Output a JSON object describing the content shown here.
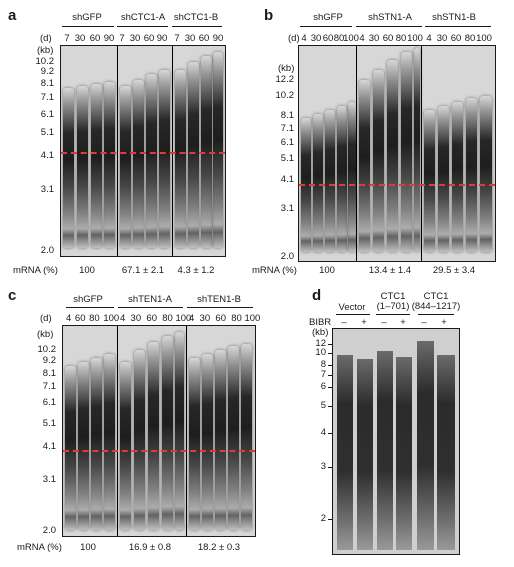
{
  "panels": {
    "a": {
      "letter": "a",
      "d_label": "(d)",
      "kb_label": "(kb)",
      "groups": [
        "shGFP",
        "shCTC1-A",
        "shCTC1-B"
      ],
      "lanes": [
        "7",
        "30",
        "60",
        "90",
        "7",
        "30",
        "60",
        "90",
        "7",
        "30",
        "60",
        "90"
      ],
      "markers": [
        "10.2",
        "9.2",
        "8.1",
        "7.1",
        "6.1",
        "5.1",
        "4.1",
        "3.1",
        "2.0"
      ],
      "mrna_label": "mRNA (%)",
      "mrna_values": [
        "100",
        "67.1 ± 2.1",
        "4.3 ± 1.2"
      ]
    },
    "b": {
      "letter": "b",
      "d_label": "(d)",
      "kb_label": "(kb)",
      "groups": [
        "shGFP",
        "shSTN1-A",
        "shSTN1-B"
      ],
      "lanes": [
        "4",
        "30",
        "60",
        "80",
        "100",
        "4",
        "30",
        "60",
        "80",
        "100",
        "4",
        "30",
        "60",
        "80",
        "100"
      ],
      "markers": [
        "12.2",
        "10.2",
        "8.1",
        "7.1",
        "6.1",
        "5.1",
        "4.1",
        "3.1",
        "2.0"
      ],
      "mrna_label": "mRNA (%)",
      "mrna_values": [
        "100",
        "13.4 ± 1.4",
        "29.5 ± 3.4"
      ]
    },
    "c": {
      "letter": "c",
      "d_label": "(d)",
      "kb_label": "(kb)",
      "groups": [
        "shGFP",
        "shTEN1-A",
        "shTEN1-B"
      ],
      "lanes_text": [
        "4  60 80 100",
        "4  30  60  80 100",
        "4  30  60  80 100"
      ],
      "markers": [
        "10.2",
        "9.2",
        "8.1",
        "7.1",
        "6.1",
        "5.1",
        "4.1",
        "3.1",
        "2.0"
      ],
      "mrna_label": "mRNA (%)",
      "mrna_values": [
        "100",
        "16.9 ± 0.8",
        "18.2 ± 0.3"
      ]
    },
    "d": {
      "letter": "d",
      "groups": [
        "Vector",
        "CTC1\n(1–701)",
        "CTC1\n(844–1217)"
      ],
      "group_line1": [
        "Vector",
        "CTC1",
        "CTC1"
      ],
      "group_line2": [
        "",
        "(1–701)",
        "(844–1217)"
      ],
      "bibr_label": "BIBR",
      "bibr_signs": [
        "–",
        "+",
        "–",
        "+",
        "–",
        "+"
      ],
      "kb_label": "(kb)",
      "markers": [
        "12",
        "10",
        "8",
        "7",
        "6",
        "5",
        "4",
        "3",
        "2"
      ]
    }
  },
  "colors": {
    "marker_line": "#e53935",
    "gel_background": "#d7d7d7",
    "band": "#1a1a1a"
  }
}
